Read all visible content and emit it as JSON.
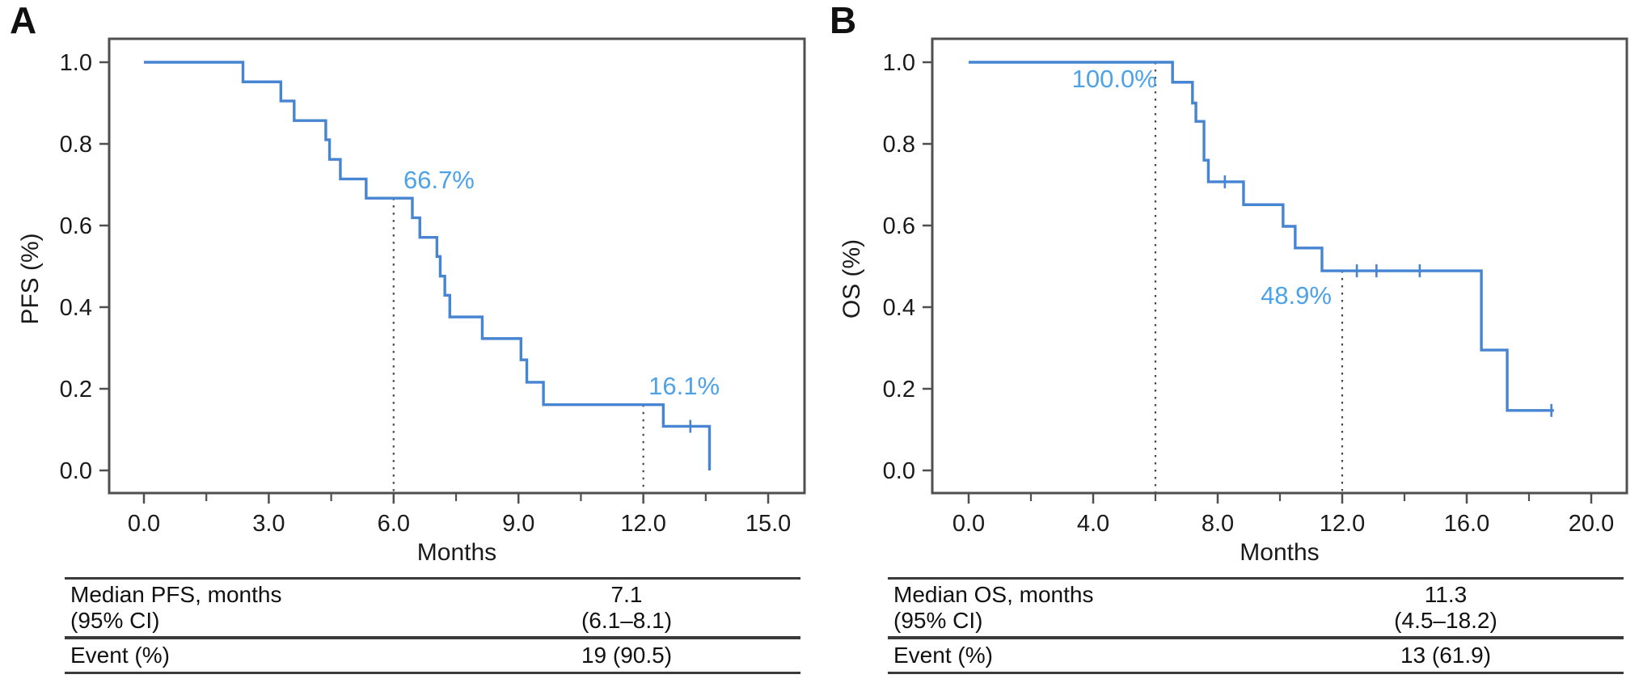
{
  "figure": {
    "panels": [
      {
        "letter": "A",
        "y_axis_label": "PFS (%)",
        "x_axis_label": "Months",
        "table": {
          "rows": [
            {
              "label_line1": "Median PFS, months",
              "label_line2": "(95% CI)",
              "value_line1": "7.1",
              "value_line2": "(6.1–8.1)"
            },
            {
              "label": "Event (%)",
              "value": "19 (90.5)"
            }
          ]
        }
      },
      {
        "letter": "B",
        "y_axis_label": "OS (%)",
        "x_axis_label": "Months",
        "table": {
          "rows": [
            {
              "label_line1": "Median OS, months",
              "label_line2": "(95% CI)",
              "value_line1": "11.3",
              "value_line2": "(4.5–18.2)"
            },
            {
              "label": "Event (%)",
              "value": "13 (61.9)"
            }
          ]
        }
      }
    ]
  },
  "chart_data": [
    {
      "type": "line",
      "subtype": "kaplan-meier-step",
      "panel": "A",
      "xlabel": "Months",
      "ylabel": "PFS (%)",
      "xlim": [
        -0.85,
        15.9
      ],
      "ylim": [
        -0.055,
        1.058
      ],
      "xticks": [
        0,
        3,
        6,
        9,
        12,
        15
      ],
      "xtick_labels": [
        "0.0",
        "3.0",
        "6.0",
        "9.0",
        "12.0",
        "15.0"
      ],
      "minor_xticks": [
        1.5,
        4.5,
        7.5,
        10.5,
        13.5
      ],
      "yticks": [
        1.0,
        0.8,
        0.6,
        0.4,
        0.2,
        0.0
      ],
      "ytick_labels": [
        "1.0",
        "0.8",
        "0.6",
        "0.4",
        "0.2",
        "0.0"
      ],
      "grid": false,
      "legend": "none",
      "series": [
        {
          "name": "PFS",
          "color": "#4784d2",
          "points": [
            [
              0,
              1.0
            ],
            [
              2.38,
              0.952
            ],
            [
              3.29,
              0.905
            ],
            [
              3.61,
              0.857
            ],
            [
              4.37,
              0.81
            ],
            [
              4.46,
              0.762
            ],
            [
              4.72,
              0.714
            ],
            [
              5.34,
              0.667
            ],
            [
              6.45,
              0.619
            ],
            [
              6.63,
              0.571
            ],
            [
              7.04,
              0.524
            ],
            [
              7.12,
              0.476
            ],
            [
              7.23,
              0.429
            ],
            [
              7.35,
              0.376
            ],
            [
              8.13,
              0.323
            ],
            [
              9.06,
              0.271
            ],
            [
              9.2,
              0.216
            ],
            [
              9.6,
              0.161
            ],
            [
              12.48,
              0.108
            ],
            [
              13.59,
              0.0
            ]
          ],
          "tail_end": null
        }
      ],
      "censor_marks": [
        [
          13.13,
          0.108
        ]
      ],
      "dashed_guides": [
        {
          "x": 6.0,
          "top_s": 0.667,
          "label": "66.7%",
          "label_t": 7.09,
          "label_s": 0.713
        },
        {
          "x": 12.0,
          "top_s": 0.161,
          "label": "16.1%",
          "label_t": 12.98,
          "label_s": 0.208
        }
      ],
      "annotation_color": "#4da2e8"
    },
    {
      "type": "line",
      "subtype": "kaplan-meier-step",
      "panel": "B",
      "xlabel": "Months",
      "ylabel": "OS (%)",
      "xlim": [
        -1.15,
        21.2
      ],
      "ylim": [
        -0.055,
        1.058
      ],
      "xticks": [
        0,
        4,
        8,
        12,
        16,
        20
      ],
      "xtick_labels": [
        "0.0",
        "4.0",
        "8.0",
        "12.0",
        "16.0",
        "20.0"
      ],
      "minor_xticks": [
        2,
        6,
        10,
        14,
        18
      ],
      "yticks": [
        1.0,
        0.8,
        0.6,
        0.4,
        0.2,
        0.0
      ],
      "ytick_labels": [
        "1.0",
        "0.8",
        "0.6",
        "0.4",
        "0.2",
        "0.0"
      ],
      "grid": false,
      "legend": "none",
      "series": [
        {
          "name": "OS",
          "color": "#4784d2",
          "points": [
            [
              0,
              1.0
            ],
            [
              6.55,
              0.951
            ],
            [
              7.19,
              0.9
            ],
            [
              7.3,
              0.855
            ],
            [
              7.56,
              0.76
            ],
            [
              7.7,
              0.707
            ],
            [
              8.83,
              0.651
            ],
            [
              10.1,
              0.598
            ],
            [
              10.49,
              0.545
            ],
            [
              11.35,
              0.489
            ],
            [
              16.47,
              0.295
            ],
            [
              17.3,
              0.147
            ]
          ],
          "tail_end": 18.8
        }
      ],
      "censor_marks": [
        [
          8.23,
          0.707
        ],
        [
          12.47,
          0.489
        ],
        [
          13.1,
          0.489
        ],
        [
          14.49,
          0.489
        ],
        [
          18.72,
          0.147
        ]
      ],
      "dashed_guides": [
        {
          "x": 6.0,
          "top_s": 1.0,
          "label": "100.0%",
          "label_t": 4.68,
          "label_s": 0.96
        },
        {
          "x": 12.0,
          "top_s": 0.489,
          "label": "48.9%",
          "label_t": 10.52,
          "label_s": 0.43
        }
      ],
      "annotation_color": "#4da2e8"
    }
  ]
}
